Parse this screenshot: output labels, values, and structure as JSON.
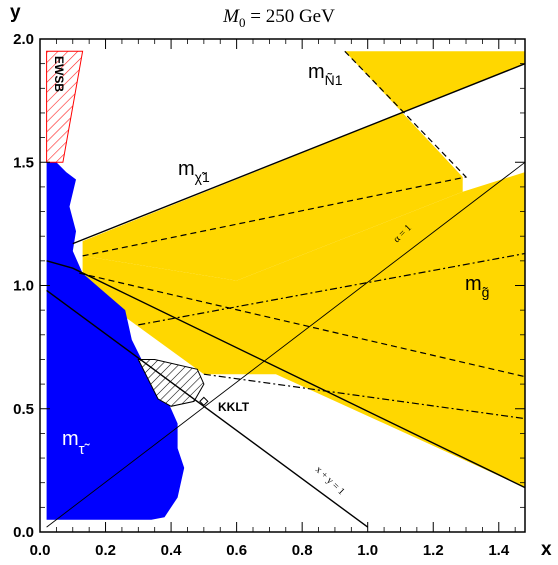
{
  "chart_data": {
    "type": "area",
    "title": "M_0 = 250 GeV",
    "title_parts": {
      "symbol": "M",
      "subscript": "0",
      "rest": " = 250 GeV"
    },
    "xlabel": "x",
    "ylabel": "y",
    "xlim": [
      0.0,
      1.48
    ],
    "ylim": [
      0.0,
      2.0
    ],
    "grid": false,
    "xticks": [
      "0.0",
      "0.2",
      "0.4",
      "0.6",
      "0.8",
      "1.0",
      "1.2",
      "1.4"
    ],
    "yticks": [
      "0.0",
      "0.5",
      "1.0",
      "1.5",
      "2.0"
    ],
    "colors": {
      "stau_region": "#0000ff",
      "allowed_region": "#ffd700",
      "ewsb_region": "#ff0000",
      "lines": "#000000"
    },
    "regions": [
      {
        "label": "EWSB",
        "fill": "hatched-red",
        "points": [
          [
            0.02,
            1.95
          ],
          [
            0.13,
            1.95
          ],
          [
            0.07,
            1.5
          ],
          [
            0.02,
            1.5
          ]
        ]
      },
      {
        "label": "m_τ̃",
        "label_base": "m",
        "label_sub": "τ̃",
        "fill": "blue",
        "points": [
          [
            0.02,
            0.05
          ],
          [
            0.02,
            1.5
          ],
          [
            0.05,
            1.5
          ],
          [
            0.08,
            1.46
          ],
          [
            0.11,
            1.43
          ],
          [
            0.09,
            1.32
          ],
          [
            0.11,
            1.22
          ],
          [
            0.1,
            1.14
          ],
          [
            0.13,
            1.05
          ],
          [
            0.19,
            0.98
          ],
          [
            0.26,
            0.9
          ],
          [
            0.28,
            0.78
          ],
          [
            0.31,
            0.7
          ],
          [
            0.33,
            0.62
          ],
          [
            0.38,
            0.56
          ],
          [
            0.42,
            0.44
          ],
          [
            0.42,
            0.34
          ],
          [
            0.44,
            0.26
          ],
          [
            0.42,
            0.14
          ],
          [
            0.38,
            0.06
          ],
          [
            0.34,
            0.05
          ]
        ]
      },
      {
        "label": "KKLT",
        "fill": "hatched-gray",
        "points": [
          [
            0.3,
            0.7
          ],
          [
            0.35,
            0.7
          ],
          [
            0.48,
            0.66
          ],
          [
            0.5,
            0.6
          ],
          [
            0.47,
            0.53
          ],
          [
            0.4,
            0.51
          ],
          [
            0.36,
            0.54
          ]
        ]
      },
      {
        "label": "upper-yellow",
        "fill": "gold",
        "points": [
          [
            0.13,
            1.18
          ],
          [
            1.48,
            1.9
          ],
          [
            1.48,
            1.95
          ],
          [
            0.93,
            1.95
          ],
          [
            1.29,
            1.44
          ],
          [
            1.29,
            1.38
          ],
          [
            0.6,
            1.02
          ],
          [
            0.13,
            1.12
          ]
        ]
      },
      {
        "label": "m_g̃",
        "label_base": "m",
        "label_sub": "g̃",
        "fill": "gold",
        "points": [
          [
            0.13,
            1.12
          ],
          [
            0.6,
            1.02
          ],
          [
            1.29,
            1.38
          ],
          [
            1.48,
            1.46
          ],
          [
            1.48,
            0.18
          ],
          [
            0.72,
            0.64
          ],
          [
            0.5,
            0.64
          ],
          [
            0.2,
            0.93
          ],
          [
            0.13,
            1.01
          ]
        ]
      }
    ],
    "lines": [
      {
        "label": "m_χ̃1",
        "label_base": "m",
        "label_sub": "χ̃1",
        "style": "solid",
        "points": [
          [
            0.1,
            1.17
          ],
          [
            1.48,
            1.9
          ]
        ]
      },
      {
        "label": "m_Ñ1",
        "label_base": "m",
        "label_sub": "Ñ1",
        "style": "dashed",
        "points": [
          [
            0.93,
            1.95
          ],
          [
            1.3,
            1.44
          ],
          [
            0.13,
            1.12
          ]
        ]
      },
      {
        "label": "dashed-lower",
        "style": "dashed",
        "points": [
          [
            0.12,
            1.05
          ],
          [
            1.48,
            0.63
          ]
        ]
      },
      {
        "label": "dashdot-upper",
        "style": "dashdot",
        "points": [
          [
            0.3,
            0.84
          ],
          [
            1.48,
            1.13
          ]
        ]
      },
      {
        "label": "dashdot-lower",
        "style": "dashdot",
        "points": [
          [
            0.5,
            0.64
          ],
          [
            1.48,
            0.46
          ]
        ]
      },
      {
        "label": "boundary-solid",
        "style": "solid",
        "points": [
          [
            0.02,
            1.1
          ],
          [
            0.1,
            1.07
          ],
          [
            1.48,
            0.18
          ]
        ]
      },
      {
        "label": "x + y = 1",
        "style": "solid",
        "points": [
          [
            0.02,
            0.98
          ],
          [
            1.0,
            0.02
          ]
        ]
      },
      {
        "label": "α = 1",
        "style": "solid-thin",
        "points": [
          [
            0.02,
            0.02
          ],
          [
            1.48,
            1.5
          ]
        ]
      }
    ],
    "markers": [
      {
        "label": "KKLT",
        "x": 0.5,
        "y": 0.53,
        "shape": "diamond"
      }
    ],
    "annotations": [
      {
        "text": "α = 1",
        "x": 1.07,
        "y": 1.23,
        "angle": -45
      },
      {
        "text": "x + y = 1",
        "x": 0.8,
        "y": 0.18,
        "angle": 44
      }
    ]
  }
}
